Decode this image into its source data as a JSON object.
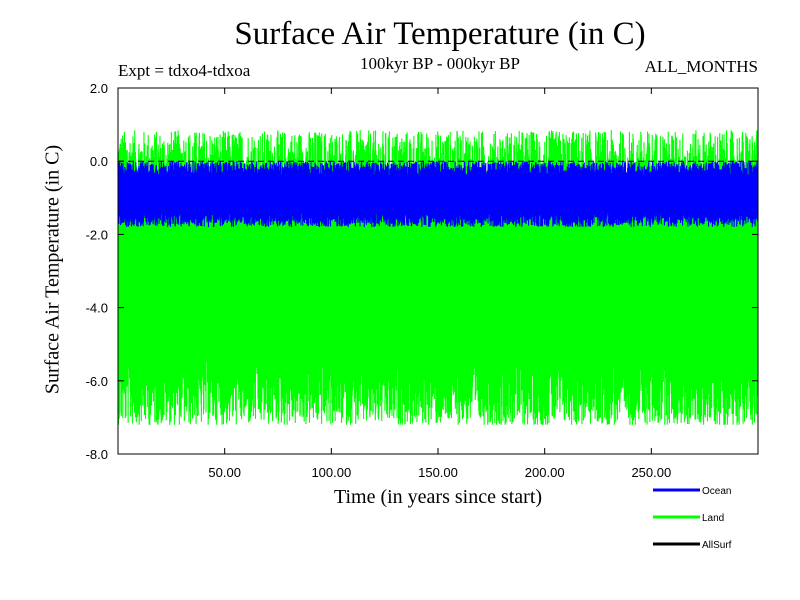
{
  "chart_data": {
    "type": "line",
    "title": "Surface Air Temperature (in C)",
    "experiment_label": "Expt = tdxo4-tdxoa",
    "subtitle": "100kyr BP - 000kyr BP",
    "season_label": "ALL_MONTHS",
    "xlabel": "Time (in years since start)",
    "ylabel": "Surface Air Temperature (in C)",
    "xlim": [
      0,
      300
    ],
    "ylim": [
      -8.0,
      2.0
    ],
    "x_ticks": [
      50,
      100,
      150,
      200,
      250
    ],
    "x_tick_labels": [
      "50.00",
      "100.00",
      "150.00",
      "200.00",
      "250.00"
    ],
    "y_ticks": [
      -8,
      -6,
      -4,
      -2,
      0,
      2
    ],
    "y_tick_labels": [
      "-8.0",
      "-6.0",
      "-4.0",
      "-2.0",
      "0.0",
      "2.0"
    ],
    "zero_line": "dashed",
    "grid": false,
    "legend_position": "bottom-right",
    "series": [
      {
        "name": "Land",
        "color": "#00ff00",
        "mean": -3.2,
        "min": -7.2,
        "max": 0.9
      },
      {
        "name": "Ocean",
        "color": "#0000ff",
        "mean": -0.9,
        "min": -1.8,
        "max": 0.0
      },
      {
        "name": "AllSurf",
        "color": "#000000",
        "mean": -1.5,
        "min": -2.0,
        "max": -1.0
      }
    ],
    "legend": [
      "Ocean",
      "Land",
      "AllSurf"
    ]
  }
}
